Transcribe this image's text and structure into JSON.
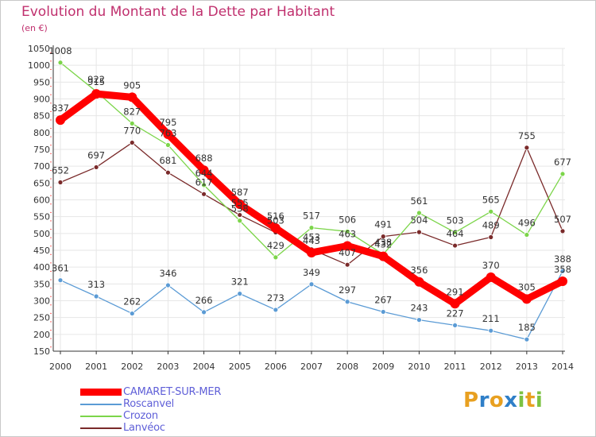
{
  "header": {
    "title": "Evolution du Montant de la Dette par Habitant",
    "unit": "(en €)"
  },
  "colors": {
    "camaret": "#ff0000",
    "roscanvel": "#5b9bd5",
    "crozon": "#7cd54a",
    "lanveoc": "#7a2a2a",
    "axis": "#333333",
    "grid": "#e6e6e6",
    "label": "#333333"
  },
  "chart_data": {
    "type": "line",
    "title": "Evolution du Montant de la Dette par Habitant",
    "xlabel": "",
    "ylabel": "(en €)",
    "x": [
      "2000",
      "2001",
      "2002",
      "2003",
      "2004",
      "2005",
      "2006",
      "2007",
      "2008",
      "2009",
      "2010",
      "2011",
      "2012",
      "2013",
      "2014"
    ],
    "y_ticks": [
      "150",
      "200",
      "250",
      "300",
      "350",
      "400",
      "450",
      "500",
      "550",
      "600",
      "650",
      "700",
      "750",
      "800",
      "850",
      "900",
      "950",
      "1000",
      "1050"
    ],
    "ylim": [
      150,
      1050
    ],
    "grid": true,
    "legend": "bottom-left",
    "series": [
      {
        "name": "CAMARET-SUR-MER",
        "key": "camaret",
        "values": [
          837,
          915,
          905,
          795,
          688,
          587,
          516,
          443,
          463,
          432,
          356,
          291,
          370,
          305,
          358
        ]
      },
      {
        "name": "Roscanvel",
        "key": "roscanvel",
        "values": [
          361,
          313,
          262,
          346,
          266,
          321,
          273,
          349,
          297,
          267,
          243,
          227,
          211,
          185,
          388
        ]
      },
      {
        "name": "Crozon",
        "key": "crozon",
        "values": [
          1008,
          922,
          827,
          763,
          644,
          538,
          429,
          517,
          506,
          438,
          561,
          503,
          565,
          496,
          677
        ]
      },
      {
        "name": "Lanvéoc",
        "key": "lanveoc",
        "values": [
          652,
          697,
          770,
          681,
          617,
          555,
          503,
          453,
          407,
          491,
          504,
          464,
          489,
          755,
          507
        ]
      }
    ]
  },
  "legend": {
    "items": [
      "CAMARET-SUR-MER",
      "Roscanvel",
      "Crozon",
      "Lanvéoc"
    ]
  },
  "logo": {
    "letters": [
      "P",
      "r",
      "o",
      "x",
      "i",
      "t",
      "i"
    ],
    "colors": [
      "#e8a020",
      "#2f7fc8",
      "#e8a020",
      "#2f7fc8",
      "#7cc242",
      "#e8a020",
      "#7cc242"
    ]
  }
}
